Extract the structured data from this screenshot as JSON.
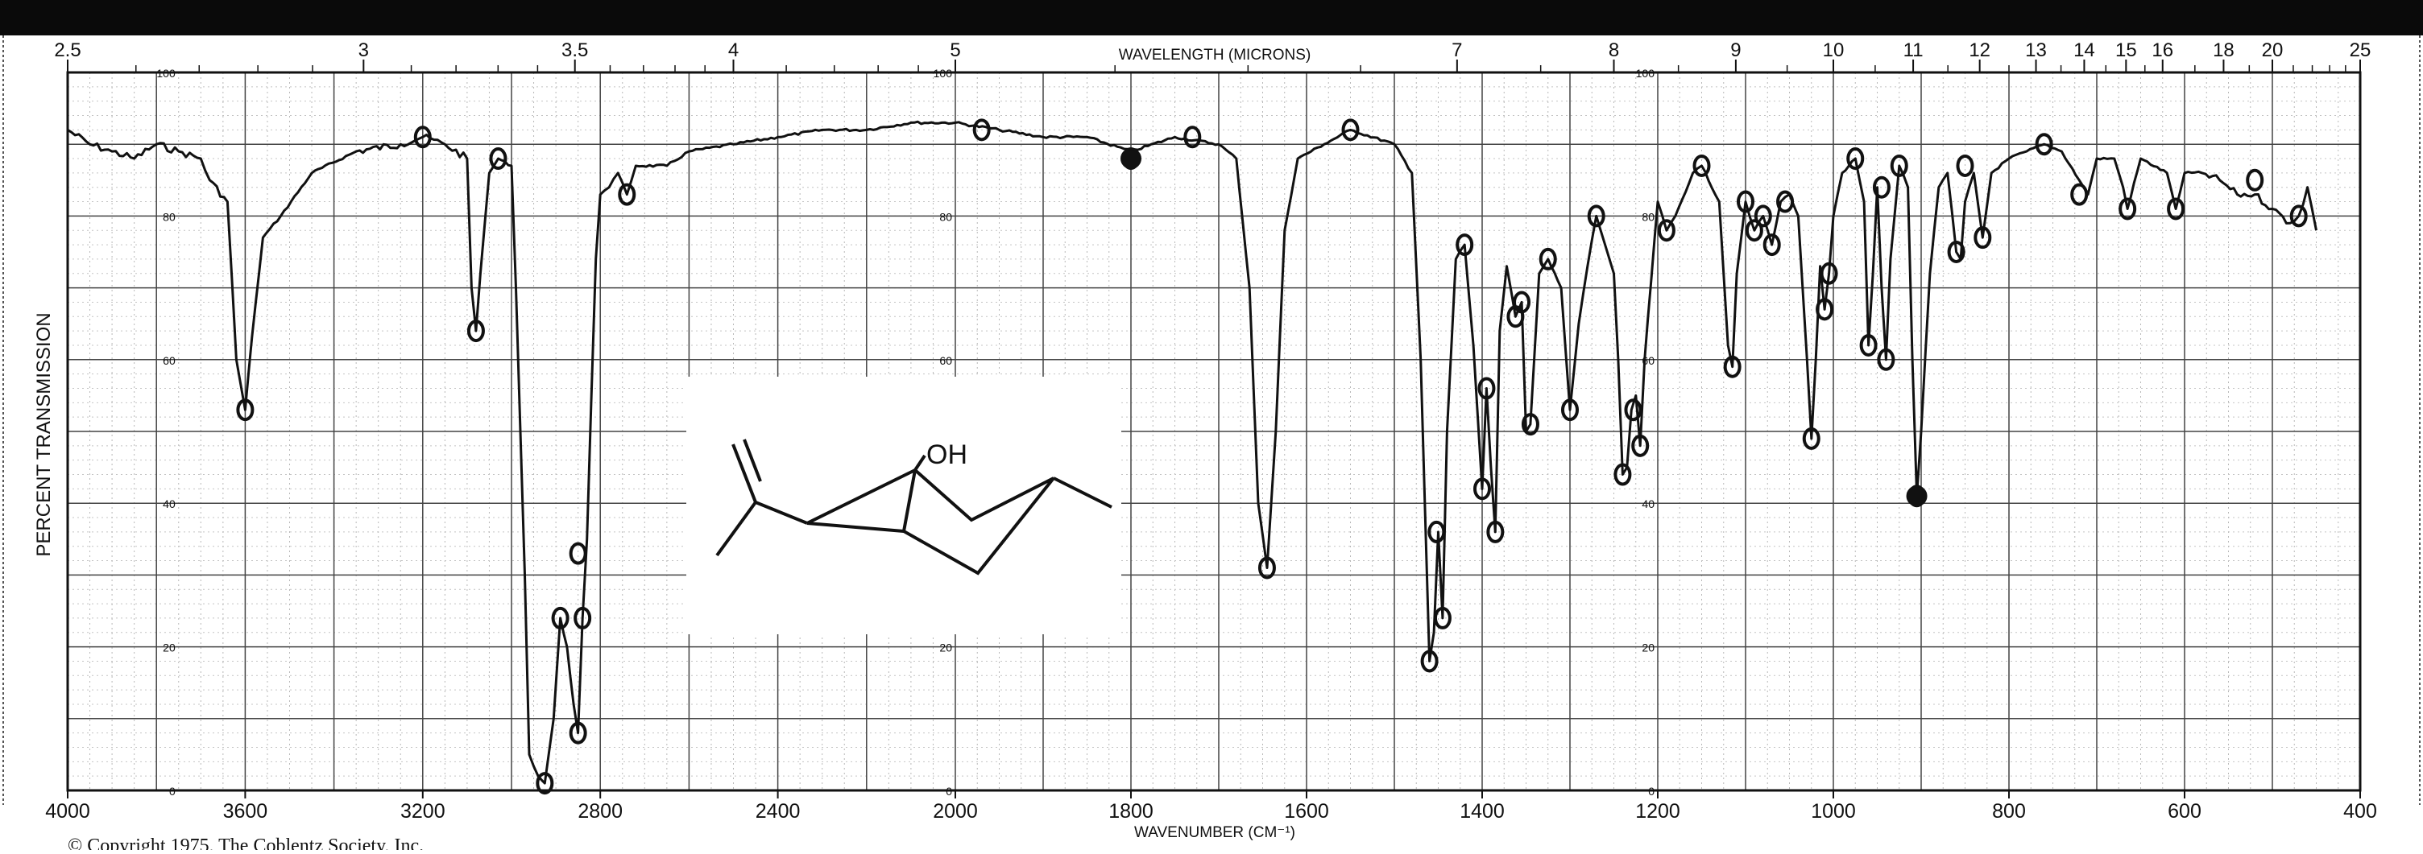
{
  "chart_data": {
    "type": "line",
    "top_axis_label": "WAVELENGTH (MICRONS)",
    "xlabel": "WAVENUMBER (CM⁻¹)",
    "ylabel": "PERCENT TRANSMISSION",
    "copyright": "© Copyright 1975, The Coblentz Society, Inc.",
    "x_ticks": [
      {
        "value": 4000,
        "label": "4000"
      },
      {
        "value": 3600,
        "label": "3600"
      },
      {
        "value": 3200,
        "label": "3200"
      },
      {
        "value": 2800,
        "label": "2800"
      },
      {
        "value": 2400,
        "label": "2400"
      },
      {
        "value": 2000,
        "label": "2000"
      },
      {
        "value": 1800,
        "label": "1800"
      },
      {
        "value": 1600,
        "label": "1600"
      },
      {
        "value": 1400,
        "label": "1400"
      },
      {
        "value": 1200,
        "label": "1200"
      },
      {
        "value": 1000,
        "label": "1000"
      },
      {
        "value": 800,
        "label": "800"
      },
      {
        "value": 600,
        "label": "600"
      },
      {
        "value": 400,
        "label": "400"
      }
    ],
    "wavelength_ticks": [
      {
        "value": 2.5,
        "label": "2.5"
      },
      {
        "value": 3,
        "label": "3"
      },
      {
        "value": 3.5,
        "label": "3.5"
      },
      {
        "value": 4,
        "label": "4"
      },
      {
        "value": 5,
        "label": "5"
      },
      {
        "value": 7,
        "label": "7"
      },
      {
        "value": 8,
        "label": "8"
      },
      {
        "value": 9,
        "label": "9"
      },
      {
        "value": 10,
        "label": "10"
      },
      {
        "value": 11,
        "label": "11"
      },
      {
        "value": 12,
        "label": "12"
      },
      {
        "value": 13,
        "label": "13"
      },
      {
        "value": 14,
        "label": "14"
      },
      {
        "value": 15,
        "label": "15"
      },
      {
        "value": 16,
        "label": "16"
      },
      {
        "value": 18,
        "label": "18"
      },
      {
        "value": 20,
        "label": "20"
      },
      {
        "value": 25,
        "label": "25"
      }
    ],
    "panel_y_labels": [
      {
        "x": 3750,
        "labels": [
          "100",
          "80",
          "60",
          "40",
          "20",
          "0"
        ]
      },
      {
        "x": 2000,
        "labels": [
          "100",
          "80",
          "60",
          "40",
          "20",
          "0"
        ]
      },
      {
        "x": 1200,
        "labels": [
          "100",
          "80",
          "60",
          "40",
          "20",
          "0"
        ]
      }
    ],
    "ylim": [
      0,
      100
    ],
    "grid": true,
    "molecule_label": "OH",
    "series": [
      {
        "values": [
          [
            4000,
            92
          ],
          [
            3950,
            90
          ],
          [
            3900,
            89
          ],
          [
            3850,
            88
          ],
          [
            3800,
            90
          ],
          [
            3750,
            89
          ],
          [
            3700,
            88
          ],
          [
            3680,
            85
          ],
          [
            3640,
            82
          ],
          [
            3620,
            60
          ],
          [
            3600,
            53
          ],
          [
            3585,
            63
          ],
          [
            3560,
            77
          ],
          [
            3520,
            80
          ],
          [
            3450,
            86
          ],
          [
            3350,
            89
          ],
          [
            3250,
            90
          ],
          [
            3200,
            91
          ],
          [
            3150,
            90
          ],
          [
            3100,
            88
          ],
          [
            3090,
            70
          ],
          [
            3080,
            64
          ],
          [
            3070,
            72
          ],
          [
            3050,
            86
          ],
          [
            3030,
            88
          ],
          [
            3000,
            87
          ],
          [
            2990,
            70
          ],
          [
            2970,
            30
          ],
          [
            2960,
            5
          ],
          [
            2940,
            2
          ],
          [
            2925,
            1
          ],
          [
            2905,
            10
          ],
          [
            2890,
            24
          ],
          [
            2875,
            20
          ],
          [
            2860,
            12
          ],
          [
            2850,
            8
          ],
          [
            2840,
            24
          ],
          [
            2830,
            35
          ],
          [
            2820,
            55
          ],
          [
            2810,
            74
          ],
          [
            2800,
            83
          ],
          [
            2780,
            84
          ],
          [
            2760,
            86
          ],
          [
            2740,
            83
          ],
          [
            2720,
            87
          ],
          [
            2650,
            87
          ],
          [
            2600,
            89
          ],
          [
            2500,
            90
          ],
          [
            2400,
            91
          ],
          [
            2300,
            92
          ],
          [
            2200,
            92
          ],
          [
            2100,
            93
          ],
          [
            2000,
            93
          ],
          [
            1950,
            92
          ],
          [
            1900,
            91
          ],
          [
            1850,
            91
          ],
          [
            1800,
            89
          ],
          [
            1750,
            91
          ],
          [
            1700,
            90
          ],
          [
            1680,
            88
          ],
          [
            1665,
            70
          ],
          [
            1655,
            40
          ],
          [
            1645,
            31
          ],
          [
            1635,
            50
          ],
          [
            1625,
            78
          ],
          [
            1610,
            88
          ],
          [
            1580,
            90
          ],
          [
            1550,
            92
          ],
          [
            1500,
            90
          ],
          [
            1480,
            86
          ],
          [
            1470,
            60
          ],
          [
            1460,
            18
          ],
          [
            1455,
            22
          ],
          [
            1450,
            36
          ],
          [
            1445,
            24
          ],
          [
            1440,
            50
          ],
          [
            1430,
            74
          ],
          [
            1420,
            76
          ],
          [
            1410,
            62
          ],
          [
            1400,
            42
          ],
          [
            1395,
            56
          ],
          [
            1390,
            45
          ],
          [
            1385,
            36
          ],
          [
            1380,
            64
          ],
          [
            1372,
            73
          ],
          [
            1362,
            66
          ],
          [
            1355,
            68
          ],
          [
            1350,
            50
          ],
          [
            1345,
            51
          ],
          [
            1335,
            72
          ],
          [
            1325,
            74
          ],
          [
            1310,
            70
          ],
          [
            1300,
            53
          ],
          [
            1290,
            65
          ],
          [
            1280,
            73
          ],
          [
            1270,
            80
          ],
          [
            1260,
            76
          ],
          [
            1250,
            72
          ],
          [
            1245,
            60
          ],
          [
            1240,
            44
          ],
          [
            1235,
            45
          ],
          [
            1230,
            53
          ],
          [
            1225,
            55
          ],
          [
            1220,
            48
          ],
          [
            1215,
            60
          ],
          [
            1200,
            82
          ],
          [
            1190,
            78
          ],
          [
            1180,
            80
          ],
          [
            1160,
            86
          ],
          [
            1150,
            87
          ],
          [
            1130,
            82
          ],
          [
            1120,
            62
          ],
          [
            1115,
            59
          ],
          [
            1110,
            72
          ],
          [
            1100,
            82
          ],
          [
            1090,
            78
          ],
          [
            1080,
            80
          ],
          [
            1070,
            76
          ],
          [
            1060,
            82
          ],
          [
            1050,
            83
          ],
          [
            1040,
            80
          ],
          [
            1030,
            60
          ],
          [
            1025,
            49
          ],
          [
            1020,
            60
          ],
          [
            1015,
            73
          ],
          [
            1010,
            67
          ],
          [
            1005,
            72
          ],
          [
            1000,
            80
          ],
          [
            990,
            86
          ],
          [
            975,
            88
          ],
          [
            965,
            82
          ],
          [
            960,
            62
          ],
          [
            955,
            72
          ],
          [
            950,
            84
          ],
          [
            945,
            70
          ],
          [
            940,
            60
          ],
          [
            935,
            74
          ],
          [
            925,
            87
          ],
          [
            915,
            84
          ],
          [
            910,
            60
          ],
          [
            905,
            41
          ],
          [
            900,
            50
          ],
          [
            890,
            72
          ],
          [
            880,
            84
          ],
          [
            870,
            86
          ],
          [
            860,
            75
          ],
          [
            855,
            74
          ],
          [
            850,
            82
          ],
          [
            840,
            86
          ],
          [
            830,
            77
          ],
          [
            820,
            86
          ],
          [
            800,
            88
          ],
          [
            780,
            89
          ],
          [
            760,
            90
          ],
          [
            740,
            89
          ],
          [
            720,
            85
          ],
          [
            710,
            83
          ],
          [
            700,
            88
          ],
          [
            680,
            88
          ],
          [
            670,
            84
          ],
          [
            665,
            81
          ],
          [
            650,
            88
          ],
          [
            620,
            86
          ],
          [
            610,
            81
          ],
          [
            600,
            86
          ],
          [
            580,
            86
          ],
          [
            560,
            85
          ],
          [
            540,
            83
          ],
          [
            520,
            83
          ],
          [
            500,
            81
          ],
          [
            480,
            79
          ],
          [
            470,
            80
          ],
          [
            460,
            84
          ],
          [
            450,
            78
          ]
        ]
      }
    ],
    "circled_points": [
      [
        3600,
        53
      ],
      [
        3200,
        91
      ],
      [
        3080,
        64
      ],
      [
        3030,
        88
      ],
      [
        2925,
        1
      ],
      [
        2890,
        24
      ],
      [
        2850,
        8
      ],
      [
        2850,
        33
      ],
      [
        2840,
        24
      ],
      [
        2740,
        83
      ],
      [
        1970,
        92
      ],
      [
        1800,
        88
      ],
      [
        1730,
        91
      ],
      [
        1645,
        31
      ],
      [
        1550,
        92
      ],
      [
        1460,
        18
      ],
      [
        1452,
        36
      ],
      [
        1445,
        24
      ],
      [
        1420,
        76
      ],
      [
        1400,
        42
      ],
      [
        1395,
        56
      ],
      [
        1385,
        36
      ],
      [
        1362,
        66
      ],
      [
        1355,
        68
      ],
      [
        1345,
        51
      ],
      [
        1325,
        74
      ],
      [
        1300,
        53
      ],
      [
        1270,
        80
      ],
      [
        1240,
        44
      ],
      [
        1228,
        53
      ],
      [
        1220,
        48
      ],
      [
        1190,
        78
      ],
      [
        1150,
        87
      ],
      [
        1115,
        59
      ],
      [
        1100,
        82
      ],
      [
        1090,
        78
      ],
      [
        1080,
        80
      ],
      [
        1070,
        76
      ],
      [
        1055,
        82
      ],
      [
        1025,
        49
      ],
      [
        1010,
        67
      ],
      [
        1005,
        72
      ],
      [
        975,
        88
      ],
      [
        960,
        62
      ],
      [
        945,
        84
      ],
      [
        940,
        60
      ],
      [
        925,
        87
      ],
      [
        905,
        41
      ],
      [
        860,
        75
      ],
      [
        850,
        87
      ],
      [
        830,
        77
      ],
      [
        760,
        90
      ],
      [
        720,
        83
      ],
      [
        665,
        81
      ],
      [
        610,
        81
      ],
      [
        520,
        85
      ],
      [
        470,
        80
      ]
    ],
    "filled_points": [
      [
        1800,
        88
      ],
      [
        905,
        41
      ]
    ]
  }
}
